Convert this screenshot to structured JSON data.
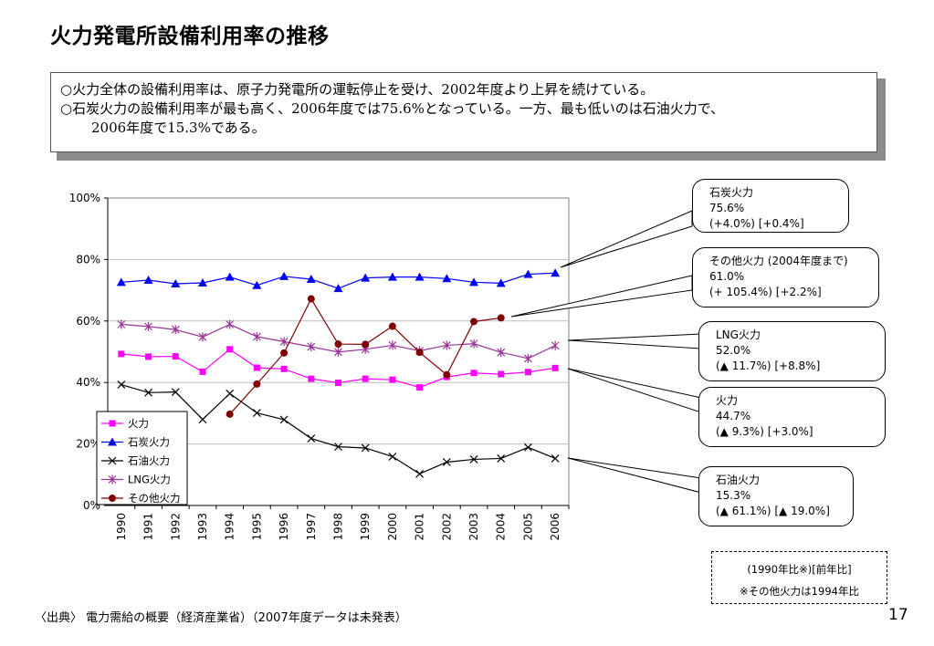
{
  "page": {
    "title": "火力発電所設備利用率の推移",
    "summary": [
      "○火力全体の設備利用率は、原子力発電所の運転停止を受け、2002年度より上昇を続けている。",
      "○石炭火力の設備利用率が最も高く、2006年度では75.6%となっている。一方、最も低いのは石油火力で、",
      "2006年度で15.3%である。"
    ],
    "source": "〈出典〉 電力需給の概要（経済産業省）（2007年度データは未発表）",
    "page_number": "17",
    "note": {
      "line1": "(1990年比※)[前年比]",
      "line2": "※その他火力は1994年比"
    }
  },
  "callouts": {
    "coal": {
      "l1": "石炭火力",
      "l2": "75.6%",
      "l3": "(+4.0%) [+0.4%]"
    },
    "other": {
      "l1": "その他火力 (2004年度まで)",
      "l2": "61.0%",
      "l3": "(+ 105.4%) [+2.2%]"
    },
    "lng": {
      "l1": "LNG火力",
      "l2": "52.0%",
      "l3": "(▲ 11.7%) [+8.8%]"
    },
    "thermal": {
      "l1": "火力",
      "l2": "44.7%",
      "l3": "(▲ 9.3%) [+3.0%]"
    },
    "oil": {
      "l1": "石油火力",
      "l2": "15.3%",
      "l3": "(▲ 61.1%) [▲ 19.0%]"
    }
  },
  "chart_data": {
    "type": "line",
    "title": "",
    "xlabel": "",
    "ylabel": "",
    "x": [
      "1990",
      "1991",
      "1992",
      "1993",
      "1994",
      "1995",
      "1996",
      "1997",
      "1998",
      "1999",
      "2000",
      "2001",
      "2002",
      "2003",
      "2004",
      "2005",
      "2006"
    ],
    "ylim": [
      0,
      100
    ],
    "yticks": [
      "0%",
      "20%",
      "40%",
      "60%",
      "80%",
      "100%"
    ],
    "yticks_values": [
      0,
      20,
      40,
      60,
      80,
      100
    ],
    "legend_placement": "bottom-left",
    "series": [
      {
        "name": "火力",
        "color": "#ff00ff",
        "marker": "square",
        "values": [
          49.3,
          48.4,
          48.5,
          43.5,
          50.8,
          44.8,
          44.4,
          41.2,
          39.9,
          41.2,
          40.9,
          38.4,
          41.8,
          43.1,
          42.7,
          43.4,
          44.7
        ]
      },
      {
        "name": "石炭火力",
        "color": "#0000ff",
        "marker": "triangle",
        "values": [
          72.6,
          73.3,
          72.1,
          72.4,
          74.3,
          71.6,
          74.5,
          73.6,
          70.6,
          74.0,
          74.3,
          74.3,
          73.8,
          72.6,
          72.3,
          75.2,
          75.6
        ]
      },
      {
        "name": "石油火力",
        "color": "#000000",
        "marker": "x",
        "values": [
          39.3,
          36.7,
          36.9,
          28.0,
          36.4,
          30.1,
          27.9,
          21.8,
          19.1,
          18.7,
          15.9,
          10.3,
          14.1,
          15.0,
          15.3,
          18.9,
          15.3
        ]
      },
      {
        "name": "LNG火力",
        "color": "#993399",
        "marker": "asterisk",
        "values": [
          58.9,
          58.2,
          57.2,
          54.8,
          58.9,
          54.9,
          53.3,
          51.6,
          49.9,
          50.8,
          52.1,
          50.3,
          52.1,
          52.6,
          49.8,
          47.8,
          52.0
        ]
      },
      {
        "name": "その他火力",
        "color": "#800000",
        "marker": "circle",
        "values": [
          null,
          null,
          null,
          null,
          29.7,
          39.5,
          49.6,
          67.2,
          52.5,
          52.4,
          58.3,
          49.8,
          42.5,
          59.8,
          61.0,
          null,
          null
        ]
      }
    ]
  }
}
